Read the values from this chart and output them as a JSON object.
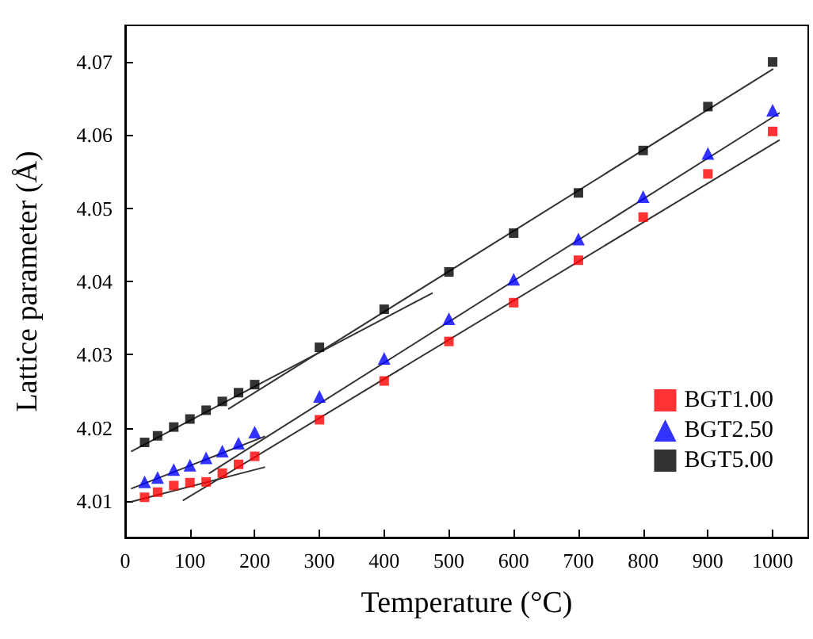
{
  "chart_data": {
    "type": "scatter",
    "xlabel": "Temperature (°C)",
    "ylabel": "Lattice parameter (Å)",
    "xlim": [
      0,
      1055
    ],
    "xticks": [
      0,
      100,
      200,
      300,
      400,
      500,
      600,
      700,
      800,
      900,
      1000
    ],
    "ylim": [
      4.005,
      4.075
    ],
    "yticks": [
      4.01,
      4.02,
      4.03,
      4.04,
      4.05,
      4.06,
      4.07
    ],
    "grid": false,
    "legend": "bottom right",
    "series": [
      {
        "name": "BGT1.00",
        "color": "#ff0000",
        "marker": "square",
        "x": [
          30,
          50,
          75,
          100,
          125,
          150,
          175,
          200,
          300,
          400,
          500,
          600,
          700,
          800,
          900,
          1000
        ],
        "values": [
          4.0105,
          4.0112,
          4.0121,
          4.0125,
          4.0126,
          4.0138,
          4.015,
          4.0161,
          4.0211,
          4.0264,
          4.0318,
          4.0371,
          4.0429,
          4.0488,
          4.0547,
          4.0605
        ]
      },
      {
        "name": "BGT2.50",
        "color": "#0000ff",
        "marker": "triangle",
        "x": [
          30,
          50,
          75,
          100,
          125,
          150,
          175,
          200,
          300,
          400,
          500,
          600,
          700,
          800,
          900,
          1000
        ],
        "values": [
          4.0126,
          4.0132,
          4.0143,
          4.0149,
          4.0159,
          4.0168,
          4.0179,
          4.0194,
          4.0243,
          4.0295,
          4.0349,
          4.0403,
          4.0458,
          4.0516,
          4.0575,
          4.0634
        ]
      },
      {
        "name": "BGT5.00",
        "color": "#000000",
        "marker": "square",
        "x": [
          30,
          50,
          75,
          100,
          125,
          150,
          175,
          200,
          300,
          400,
          500,
          600,
          700,
          800,
          900,
          1000
        ],
        "values": [
          4.018,
          4.0189,
          4.0201,
          4.0212,
          4.0224,
          4.0236,
          4.0248,
          4.0259,
          4.031,
          4.0362,
          4.0413,
          4.0466,
          4.0521,
          4.0579,
          4.0639,
          4.07
        ]
      },
      {
        "type": "line",
        "color": "#333333",
        "marker": "none",
        "x": [
          10,
          215
        ],
        "values": [
          4.0099,
          4.0146
        ]
      },
      {
        "type": "line",
        "color": "#333333",
        "marker": "none",
        "x": [
          90,
          1010
        ],
        "values": [
          4.0101,
          4.0593
        ]
      },
      {
        "type": "line",
        "color": "#333333",
        "marker": "none",
        "x": [
          10,
          215
        ],
        "values": [
          4.0117,
          4.0188
        ]
      },
      {
        "type": "line",
        "color": "#333333",
        "marker": "none",
        "x": [
          130,
          1010
        ],
        "values": [
          4.0138,
          4.063
        ]
      },
      {
        "type": "line",
        "color": "#333333",
        "marker": "none",
        "x": [
          10,
          474
        ],
        "values": [
          4.0168,
          4.0384
        ]
      },
      {
        "type": "line",
        "color": "#333333",
        "marker": "none",
        "x": [
          160,
          1000
        ],
        "values": [
          4.0226,
          4.069
        ]
      }
    ]
  }
}
